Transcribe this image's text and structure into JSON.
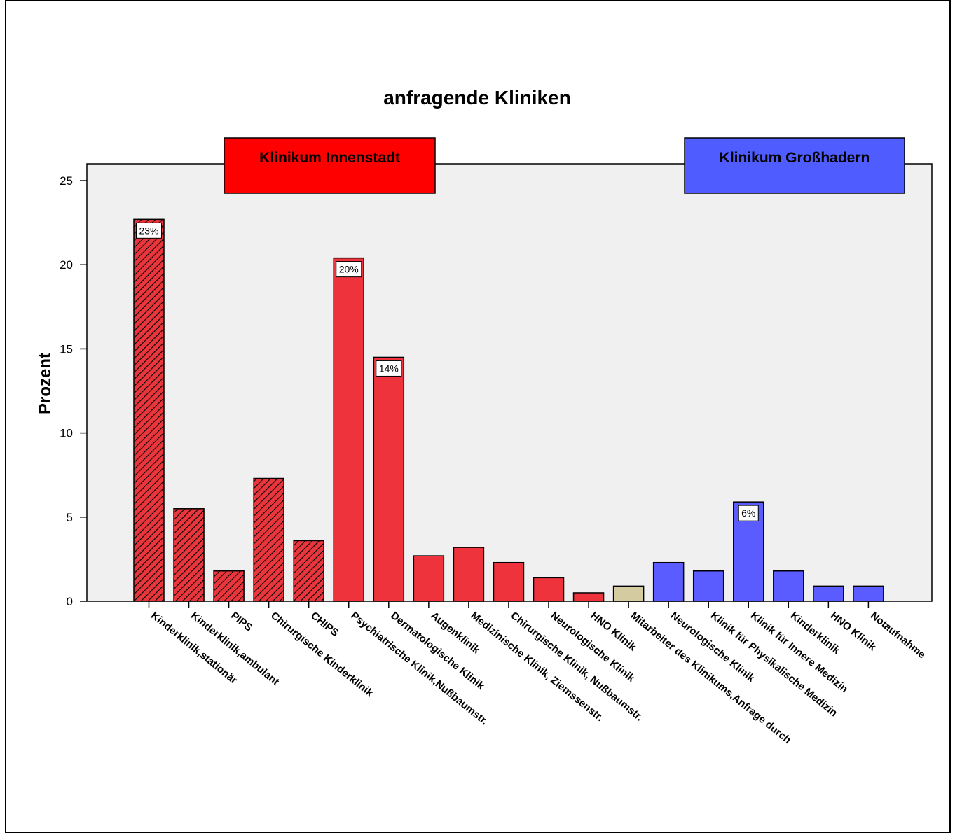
{
  "chart_data": {
    "type": "bar",
    "title": "anfragende Kliniken",
    "ylabel": "Prozent",
    "xlabel": "",
    "ylim": [
      0,
      26
    ],
    "yticks": [
      0,
      5,
      10,
      15,
      20,
      25
    ],
    "grid": false,
    "background": "#f0f0f0",
    "categories": [
      "Kinderklinik,stationär",
      "Kinderklinik,ambulant",
      "PIPS",
      "Chirurgische Kinderklinik",
      "CHIPS",
      "Psychiatrische Klinik,Nußbaumstr.",
      "Dermatologische Klinik",
      "Augenklinik",
      "Medizinische Klinik, Ziemssenstr.",
      "Chirurgische Klinik, Nußbaumstr.",
      "Neurologische Klinik",
      "HNO Klinik",
      "Mitarbeiter des Klinikums,Anfrage durch",
      "Neurologische Klinik",
      "Klinik für Physikalische Medizin",
      "Klinik für Innere Medizin",
      "Kinderklinik",
      "HNO Klinik",
      "Notaufnahme"
    ],
    "values": [
      22.7,
      5.5,
      1.8,
      7.3,
      3.6,
      20.4,
      14.5,
      2.7,
      3.2,
      2.3,
      1.4,
      0.5,
      0.9,
      2.3,
      1.8,
      5.9,
      1.8,
      0.9,
      0.9
    ],
    "groups": [
      "red-hatched",
      "red-hatched",
      "red-hatched",
      "red-hatched",
      "red-hatched",
      "red",
      "red",
      "red",
      "red",
      "red",
      "red",
      "red",
      "neutral",
      "blue",
      "blue",
      "blue",
      "blue",
      "blue",
      "blue"
    ],
    "data_labels": [
      {
        "index": 0,
        "text": "23%"
      },
      {
        "index": 5,
        "text": "20%"
      },
      {
        "index": 6,
        "text": "14%"
      },
      {
        "index": 15,
        "text": "6%"
      }
    ],
    "legend": [
      {
        "label": "Klinikum Innenstadt",
        "color": "#ff0000",
        "position": "top-left"
      },
      {
        "label": "Klinikum Großhadern",
        "color": "#4f5cff",
        "position": "top-right"
      }
    ],
    "colors": {
      "red-hatched": "#e8363c",
      "red": "#ee333c",
      "neutral": "#d4cca0",
      "blue": "#5a5cff"
    }
  }
}
